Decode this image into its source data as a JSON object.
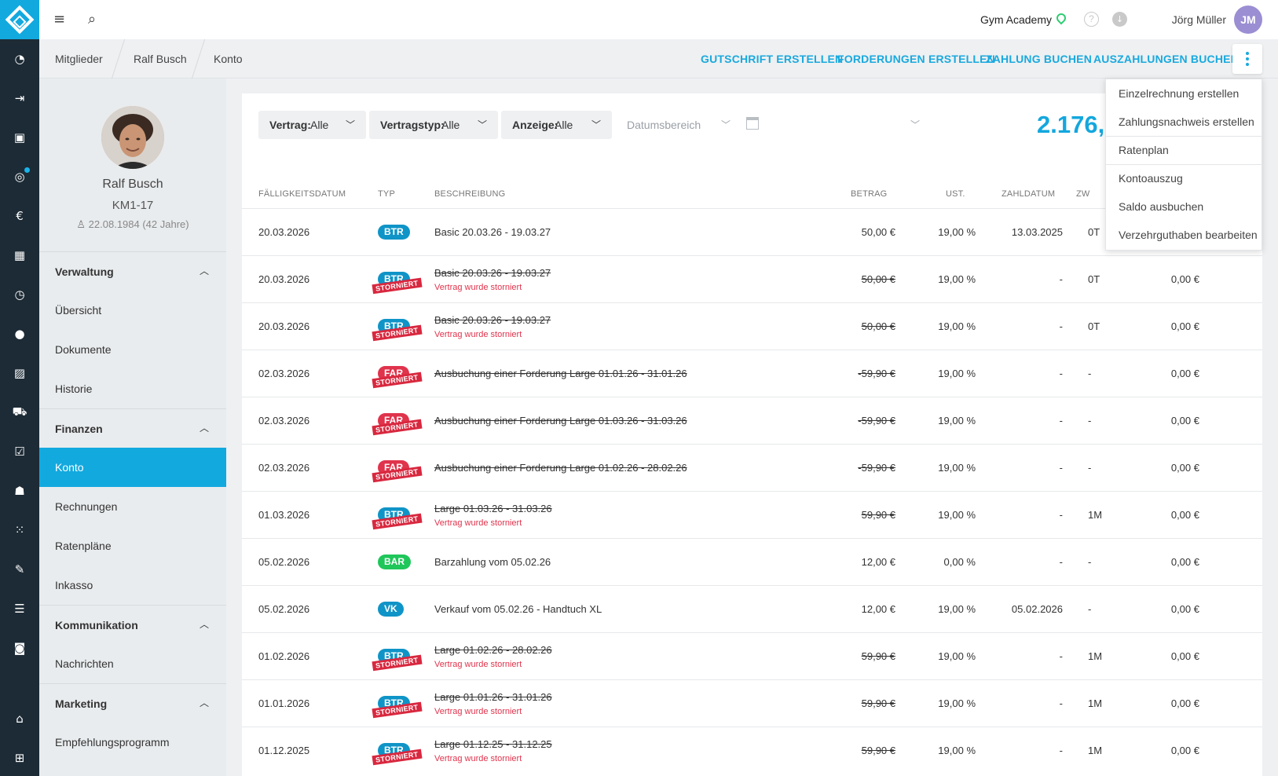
{
  "topbar": {
    "studio": "Gym Academy",
    "help": "?",
    "user_name": "Jörg Müller",
    "user_initials": "JM"
  },
  "breadcrumb": [
    "Mitglieder",
    "Ralf Busch",
    "Konto"
  ],
  "actions": {
    "gutschrift": "GUTSCHRIFT ERSTELLEN",
    "forderungen": "FORDERUNGEN ERSTELLEN",
    "zahlung": "ZAHLUNG BUCHEN",
    "auszahlungen": "AUSZAHLUNGEN BUCHEN"
  },
  "menu": {
    "items": [
      "Einzelrechnung erstellen",
      "Zahlungsnachweis erstellen",
      "Ratenplan",
      "Kontoauszug",
      "Saldo ausbuchen",
      "Verzehrguthaben bearbeiten"
    ]
  },
  "profile": {
    "name": "Ralf Busch",
    "member_no": "KM1-17",
    "birth": "22.08.1984 (42 Jahre)"
  },
  "sidebar": {
    "verwaltung": {
      "label": "Verwaltung",
      "items": [
        "Übersicht",
        "Dokumente",
        "Historie"
      ]
    },
    "finanzen": {
      "label": "Finanzen",
      "items": [
        "Konto",
        "Rechnungen",
        "Ratenpläne",
        "Inkasso"
      ]
    },
    "kommunikation": {
      "label": "Kommunikation",
      "items": [
        "Nachrichten"
      ]
    },
    "marketing": {
      "label": "Marketing",
      "items": [
        "Empfehlungsprogramm"
      ]
    }
  },
  "filters": {
    "vertrag": {
      "label": "Vertrag:",
      "value": "Alle"
    },
    "vertragstyp": {
      "label": "Vertragstyp:",
      "value": "Alle"
    },
    "anzeige": {
      "label": "Anzeige:",
      "value": "Alle"
    },
    "date_placeholder": "Datumsbereich"
  },
  "balance": "2.176,",
  "table": {
    "headers": {
      "date": "FÄLLIGKEITSDATUM",
      "type": "TYP",
      "desc": "BESCHREIBUNG",
      "amount": "BETRAG",
      "vat": "UST.",
      "paydate": "ZAHLDATUM",
      "zw": "ZW"
    },
    "storniert": "STORNIERT",
    "rows": [
      {
        "date": "20.03.2026",
        "type": "BTR",
        "desc": "Basic 20.03.26 - 19.03.27",
        "sub": "",
        "amount": "50,00 €",
        "vat": "19,00 %",
        "paydate": "13.03.2025",
        "zw": "0T",
        "open": ""
      },
      {
        "date": "20.03.2026",
        "type": "BTR",
        "desc": "Basic 20.03.26 - 19.03.27",
        "sub": "Vertrag wurde storniert",
        "amount": "50,00 €",
        "vat": "19,00 %",
        "paydate": "-",
        "zw": "0T",
        "open": "0,00 €"
      },
      {
        "date": "20.03.2026",
        "type": "BTR",
        "desc": "Basic 20.03.26 - 19.03.27",
        "sub": "Vertrag wurde storniert",
        "amount": "50,00 €",
        "vat": "19,00 %",
        "paydate": "-",
        "zw": "0T",
        "open": "0,00 €"
      },
      {
        "date": "02.03.2026",
        "type": "FAR",
        "desc": "Ausbuchung einer Forderung Large 01.01.26 - 31.01.26",
        "sub": "",
        "amount": "-59,90 €",
        "vat": "19,00 %",
        "paydate": "-",
        "zw": "-",
        "open": "0,00 €"
      },
      {
        "date": "02.03.2026",
        "type": "FAR",
        "desc": "Ausbuchung einer Forderung Large 01.03.26 - 31.03.26",
        "sub": "",
        "amount": "-59,90 €",
        "vat": "19,00 %",
        "paydate": "-",
        "zw": "-",
        "open": "0,00 €"
      },
      {
        "date": "02.03.2026",
        "type": "FAR",
        "desc": "Ausbuchung einer Forderung Large 01.02.26 - 28.02.26",
        "sub": "",
        "amount": "-59,90 €",
        "vat": "19,00 %",
        "paydate": "-",
        "zw": "-",
        "open": "0,00 €"
      },
      {
        "date": "01.03.2026",
        "type": "BTR",
        "desc": "Large 01.03.26 - 31.03.26",
        "sub": "Vertrag wurde storniert",
        "amount": "59,90 €",
        "vat": "19,00 %",
        "paydate": "-",
        "zw": "1M",
        "open": "0,00 €"
      },
      {
        "date": "05.02.2026",
        "type": "BAR",
        "desc": "Barzahlung vom 05.02.26",
        "sub": "",
        "amount": "12,00 €",
        "vat": "0,00 %",
        "paydate": "-",
        "zw": "-",
        "open": "0,00 €"
      },
      {
        "date": "05.02.2026",
        "type": "VK",
        "desc": "Verkauf vom 05.02.26 - Handtuch XL",
        "sub": "",
        "amount": "12,00 €",
        "vat": "19,00 %",
        "paydate": "05.02.2026",
        "zw": "-",
        "open": "0,00 €"
      },
      {
        "date": "01.02.2026",
        "type": "BTR",
        "desc": "Large 01.02.26 - 28.02.26",
        "sub": "Vertrag wurde storniert",
        "amount": "59,90 €",
        "vat": "19,00 %",
        "paydate": "-",
        "zw": "1M",
        "open": "0,00 €"
      },
      {
        "date": "01.01.2026",
        "type": "BTR",
        "desc": "Large 01.01.26 - 31.01.26",
        "sub": "Vertrag wurde storniert",
        "amount": "59,90 €",
        "vat": "19,00 %",
        "paydate": "-",
        "zw": "1M",
        "open": "0,00 €"
      },
      {
        "date": "01.12.2025",
        "type": "BTR",
        "desc": "Large 01.12.25 - 31.12.25",
        "sub": "Vertrag wurde storniert",
        "amount": "59,90 €",
        "vat": "19,00 %",
        "paydate": "-",
        "zw": "1M",
        "open": "0,00 €"
      }
    ]
  }
}
